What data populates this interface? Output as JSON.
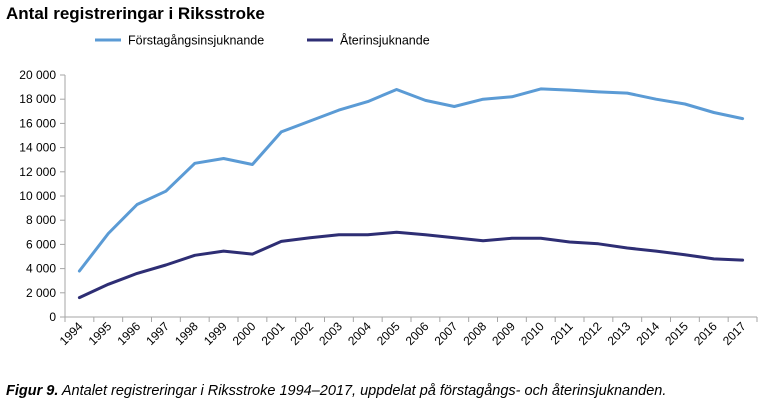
{
  "title": "Antal registreringar i Riksstroke",
  "caption": {
    "label": "Figur 9.",
    "text": " Antalet registreringar i Riksstroke 1994–2017, uppdelat på förstagångs- och återinsjuknanden."
  },
  "chart_data": {
    "type": "line",
    "title": "Antal registreringar i Riksstroke",
    "xlabel": "",
    "ylabel": "",
    "ylim": [
      0,
      20000
    ],
    "yticks": [
      0,
      2000,
      4000,
      6000,
      8000,
      10000,
      12000,
      14000,
      16000,
      18000,
      20000
    ],
    "ytick_labels": [
      "0",
      "2 000",
      "4 000",
      "6 000",
      "8 000",
      "10 000",
      "12 000",
      "14 000",
      "16 000",
      "18 000",
      "20 000"
    ],
    "categories": [
      "1994",
      "1995",
      "1996",
      "1997",
      "1998",
      "1999",
      "2000",
      "2001",
      "2002",
      "2003",
      "2004",
      "2005",
      "2006",
      "2007",
      "2008",
      "2009",
      "2010",
      "2011",
      "2012",
      "2013",
      "2014",
      "2015",
      "2016",
      "2017"
    ],
    "grid": false,
    "legend": "top-center",
    "series": [
      {
        "name": "Förstagångsinsjuknande",
        "color": "#5b9bd5",
        "values": [
          3800,
          6900,
          9300,
          10400,
          12700,
          13100,
          12600,
          15300,
          16200,
          17100,
          17800,
          18800,
          17900,
          17400,
          18000,
          18200,
          18850,
          18750,
          18600,
          18500,
          18000,
          17600,
          16900,
          16400
        ]
      },
      {
        "name": "Återinsjuknande",
        "color": "#2e2e74",
        "values": [
          1600,
          2700,
          3600,
          4300,
          5100,
          5450,
          5200,
          6250,
          6550,
          6800,
          6800,
          7000,
          6800,
          6550,
          6300,
          6500,
          6500,
          6200,
          6050,
          5700,
          5450,
          5150,
          4800,
          4700
        ]
      }
    ]
  }
}
